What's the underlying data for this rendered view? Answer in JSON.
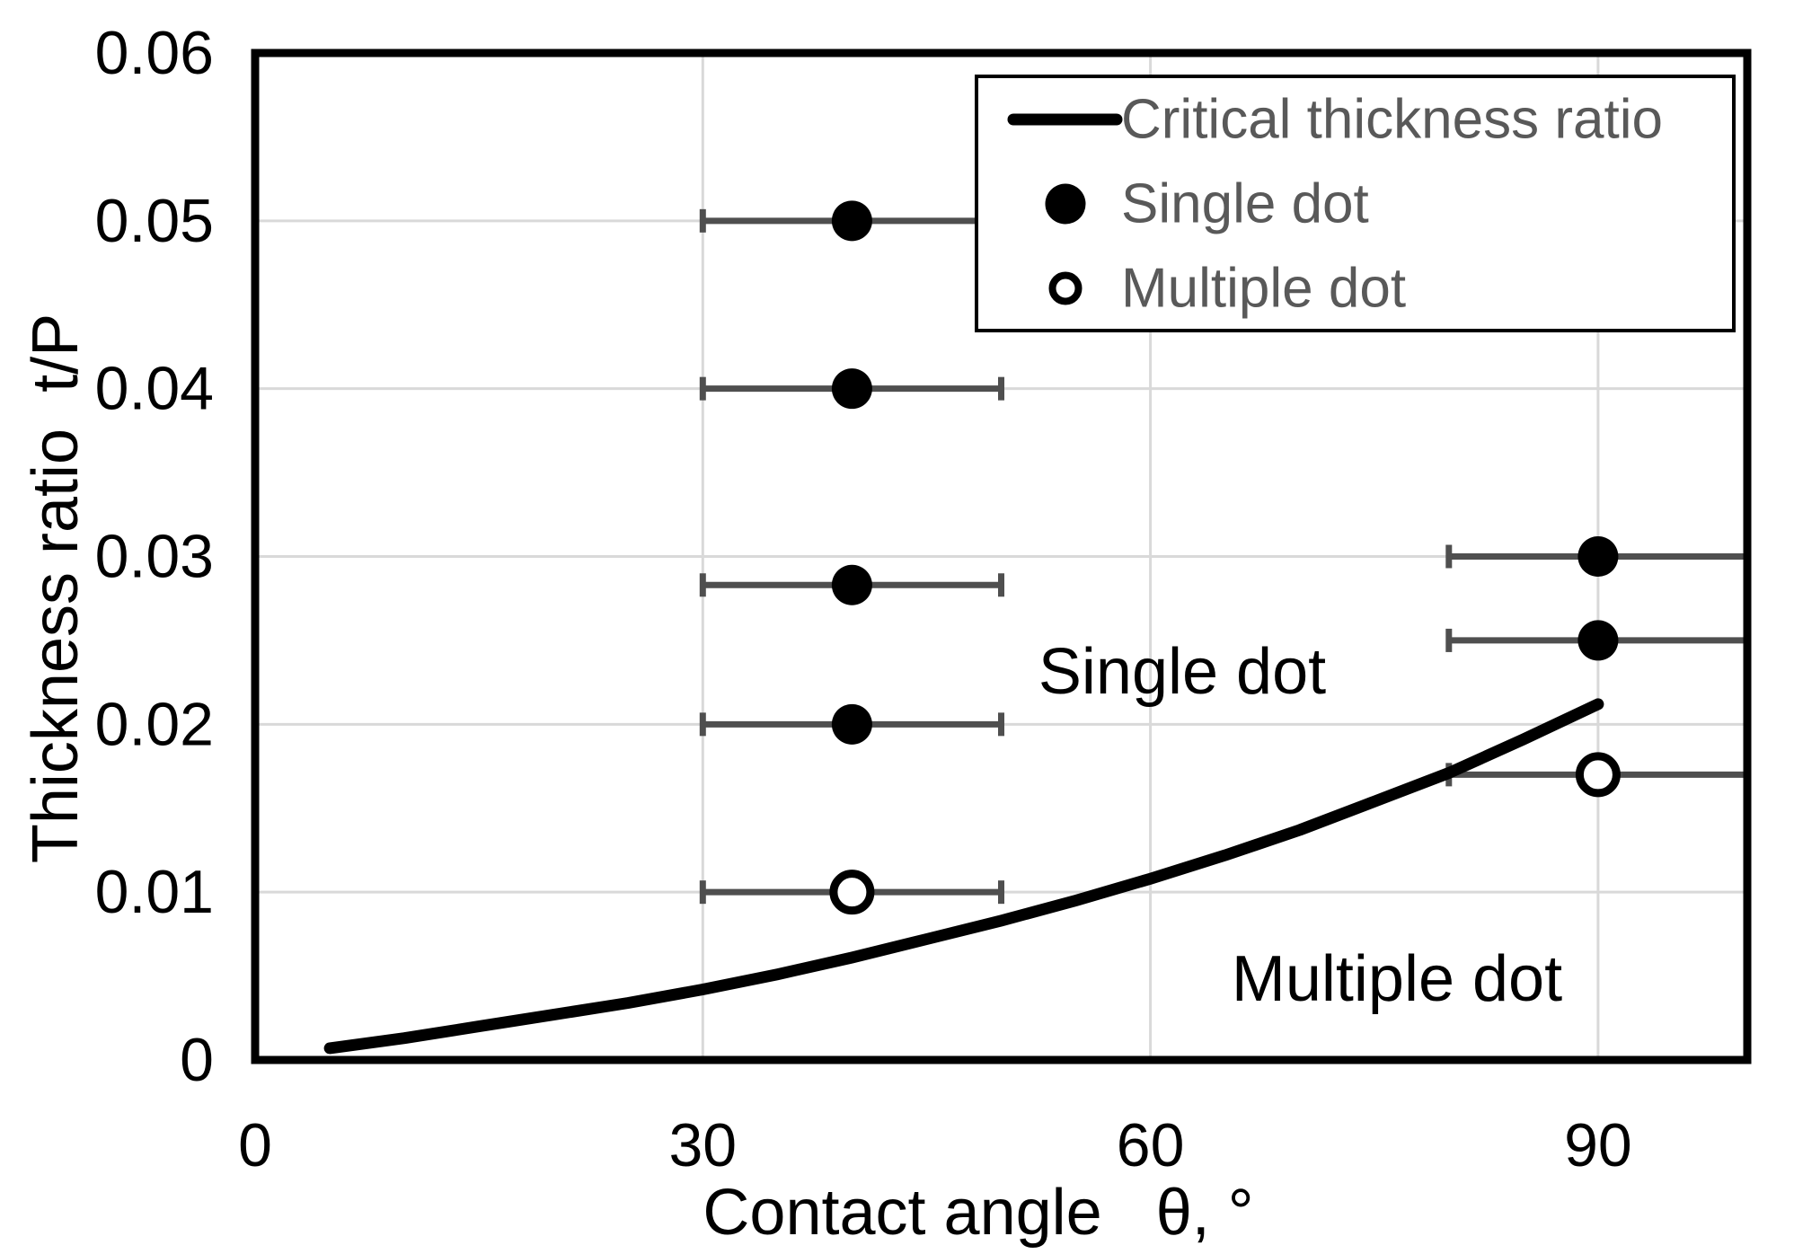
{
  "figure": {
    "background": "#ffffff"
  },
  "style": {
    "curve_color": "#000000",
    "error_bar_color": "#4f4f4f",
    "grid_color": "#d9d9d9",
    "frame_color": "#000000",
    "legend_text_color": "#595959",
    "axis_text_color": "#000000",
    "marker_color": "#000000",
    "open_marker_fill": "#ffffff"
  },
  "axes": {
    "x_title": "Contact angle   θ, °",
    "y_title": "Thickness ratio  t/P"
  },
  "legend": {
    "position": "top-right",
    "items": [
      {
        "marker": "line-sample",
        "label": "Critical thickness ratio"
      },
      {
        "marker": "filled-circle",
        "label": "Single dot"
      },
      {
        "marker": "open-circle",
        "label": "Multiple dot"
      }
    ]
  },
  "chart_data": {
    "type": "scatter",
    "title": "",
    "xlabel": "Contact angle θ, °",
    "ylabel": "Thickness ratio t/P",
    "xlim": [
      0,
      100
    ],
    "ylim": [
      0,
      0.06
    ],
    "grid": true,
    "x_tick_values": [
      0,
      30,
      60,
      90
    ],
    "x_tick_labels": [
      "0",
      "30",
      "60",
      "90"
    ],
    "y_tick_values": [
      0.06,
      0.05,
      0.04,
      0.03,
      0.02,
      0.01,
      0
    ],
    "y_tick_labels": [
      "0.06",
      "0.05",
      "0.04",
      "0.03",
      "0.02",
      "0.01",
      "0"
    ],
    "x_gridlines": [
      30,
      60,
      90
    ],
    "y_gridlines": [
      0.01,
      0.02,
      0.03,
      0.04,
      0.05
    ],
    "legend_position": "top-right",
    "series": [
      {
        "name": "Critical thickness ratio",
        "type": "line",
        "color": "#000000",
        "points": [
          [
            5,
            0.0007
          ],
          [
            10,
            0.0013
          ],
          [
            15,
            0.002
          ],
          [
            20,
            0.0027
          ],
          [
            25,
            0.0034
          ],
          [
            30,
            0.0042
          ],
          [
            35,
            0.0051
          ],
          [
            40,
            0.0061
          ],
          [
            45,
            0.0072
          ],
          [
            50,
            0.0083
          ],
          [
            55,
            0.0095
          ],
          [
            60,
            0.0108
          ],
          [
            65,
            0.0122
          ],
          [
            70,
            0.0137
          ],
          [
            75,
            0.0154
          ],
          [
            80,
            0.0171
          ],
          [
            85,
            0.0191
          ],
          [
            90,
            0.0212
          ]
        ]
      },
      {
        "name": "Single dot",
        "type": "scatter",
        "marker": "filled-circle",
        "color": "#000000",
        "xerr": 10,
        "points": [
          [
            40,
            0.05
          ],
          [
            40,
            0.04
          ],
          [
            40,
            0.0283
          ],
          [
            40,
            0.02
          ],
          [
            90,
            0.03
          ],
          [
            90,
            0.025
          ]
        ]
      },
      {
        "name": "Multiple dot",
        "type": "scatter",
        "marker": "open-circle",
        "color": "#000000",
        "xerr": 10,
        "points": [
          [
            40,
            0.01
          ],
          [
            90,
            0.017
          ]
        ]
      }
    ],
    "annotations": [
      {
        "text": "Single dot",
        "x": 62,
        "y": 0.0231
      },
      {
        "text": "Multiple dot",
        "x": 76.5,
        "y": 0.0048
      }
    ]
  }
}
